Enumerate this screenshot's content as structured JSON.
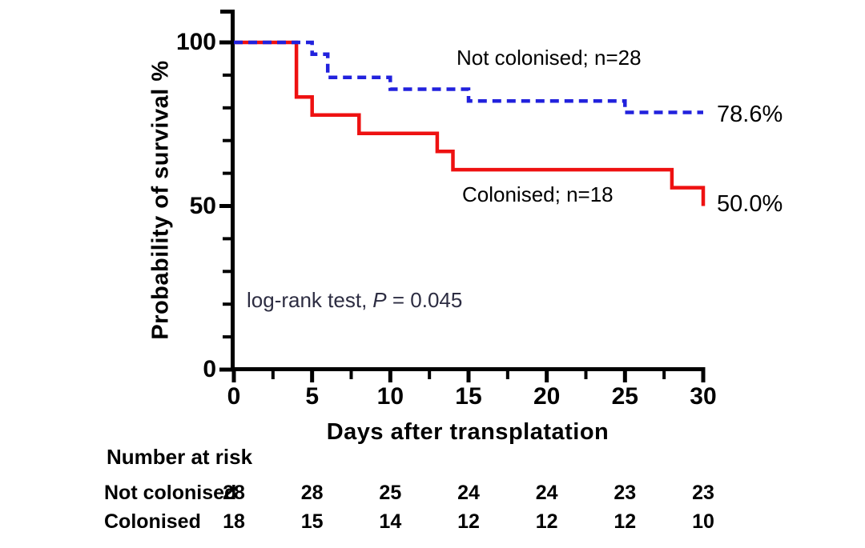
{
  "figure": {
    "y_axis_label": "Probability of survival %",
    "x_axis_label": "Days after transplatation",
    "curve_label_blue": "Not colonised; n=28",
    "curve_label_red": "Colonised; n=18",
    "end_label_blue": "78.6%",
    "end_label_red": "50.0%",
    "logrank_text": "log-rank test,",
    "logrank_p_symbol": "P",
    "logrank_value": "= 0.045"
  },
  "colors": {
    "blue": "#2121DD",
    "red": "#EE1111",
    "axis": "#000000",
    "annotation": "#2D2D42"
  },
  "chart_data": {
    "type": "line",
    "subtype": "kaplan-meier-step",
    "title": "",
    "xlabel": "Days after transplatation",
    "ylabel": "Probability of survival %",
    "xlim": [
      0,
      30
    ],
    "ylim": [
      0,
      100
    ],
    "x_ticks": [
      0,
      5,
      10,
      15,
      20,
      25,
      30
    ],
    "x_minor_ticks": [
      2.5,
      7.5,
      12.5,
      17.5,
      22.5,
      27.5
    ],
    "y_ticks": [
      100,
      50,
      0
    ],
    "y_minor_ticks": [
      10,
      20,
      30,
      40,
      60,
      70,
      80,
      90
    ],
    "grid": false,
    "legend_position": "on-curve",
    "series": [
      {
        "name": "Not colonised",
        "n": 28,
        "color": "#2121DD",
        "line_style": "dashed",
        "final_value_pct": 78.6,
        "steps": [
          [
            0,
            100
          ],
          [
            5,
            100
          ],
          [
            5,
            96.4
          ],
          [
            6,
            96.4
          ],
          [
            6,
            89.3
          ],
          [
            10,
            89.3
          ],
          [
            10,
            85.7
          ],
          [
            15,
            85.7
          ],
          [
            15,
            82.1
          ],
          [
            25,
            82.1
          ],
          [
            25,
            78.6
          ],
          [
            30,
            78.6
          ]
        ]
      },
      {
        "name": "Colonised",
        "n": 18,
        "color": "#EE1111",
        "line_style": "solid",
        "final_value_pct": 50.0,
        "steps": [
          [
            0,
            100
          ],
          [
            4,
            100
          ],
          [
            4,
            83.3
          ],
          [
            5,
            83.3
          ],
          [
            5,
            77.8
          ],
          [
            8,
            77.8
          ],
          [
            8,
            72.2
          ],
          [
            13,
            72.2
          ],
          [
            13,
            66.7
          ],
          [
            14,
            66.7
          ],
          [
            14,
            61.1
          ],
          [
            28,
            61.1
          ],
          [
            28,
            55.6
          ],
          [
            30,
            55.6
          ],
          [
            30,
            50.0
          ]
        ]
      }
    ],
    "statistics": {
      "test": "log-rank test",
      "p_value": "0.045"
    }
  },
  "risk_table": {
    "heading": "Number at risk",
    "time_points": [
      0,
      5,
      10,
      15,
      20,
      25,
      30
    ],
    "rows": [
      {
        "label": "Not colonised",
        "values": [
          "28",
          "28",
          "25",
          "24",
          "24",
          "23",
          "23"
        ]
      },
      {
        "label": "Colonised",
        "values": [
          "18",
          "15",
          "14",
          "12",
          "12",
          "12",
          "10"
        ]
      }
    ]
  }
}
